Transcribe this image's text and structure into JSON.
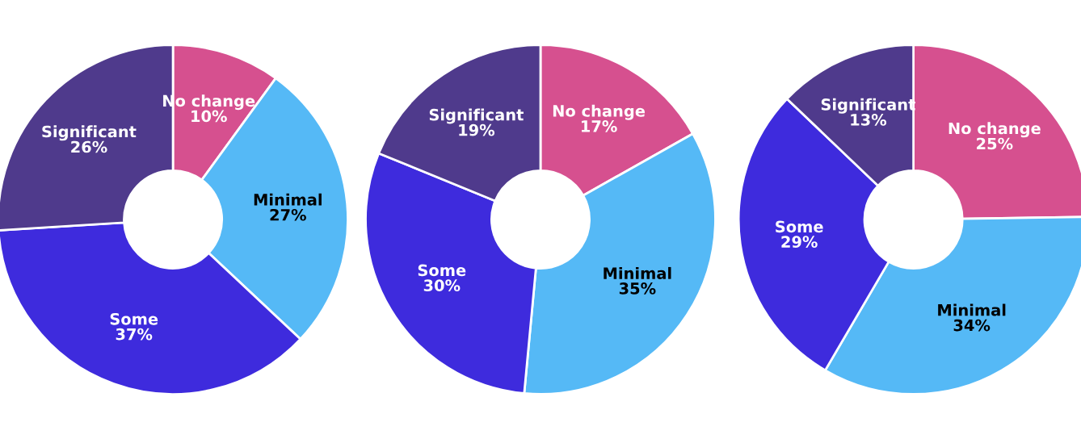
{
  "chart_data": [
    {
      "type": "donut",
      "categories": [
        "No change",
        "Minimal",
        "Some",
        "Significant"
      ],
      "values": [
        10,
        27,
        37,
        26
      ],
      "value_labels": [
        "10%",
        "27%",
        "37%",
        "26%"
      ],
      "colors": [
        "#d6508f",
        "#55b9f6",
        "#3e2bdd",
        "#4f3a8c"
      ],
      "legend": false
    },
    {
      "type": "donut",
      "categories": [
        "No change",
        "Minimal",
        "Some",
        "Significant"
      ],
      "values": [
        17,
        35,
        30,
        19
      ],
      "value_labels": [
        "17%",
        "35%",
        "30%",
        "19%"
      ],
      "colors": [
        "#d6508f",
        "#55b9f6",
        "#3e2bdd",
        "#4f3a8c"
      ],
      "legend": false
    },
    {
      "type": "donut",
      "categories": [
        "No change",
        "Minimal",
        "Some",
        "Significant"
      ],
      "values": [
        25,
        34,
        29,
        13
      ],
      "value_labels": [
        "25%",
        "34%",
        "29%",
        "13%"
      ],
      "colors": [
        "#d6508f",
        "#55b9f6",
        "#3e2bdd",
        "#4f3a8c"
      ],
      "legend": false
    }
  ]
}
